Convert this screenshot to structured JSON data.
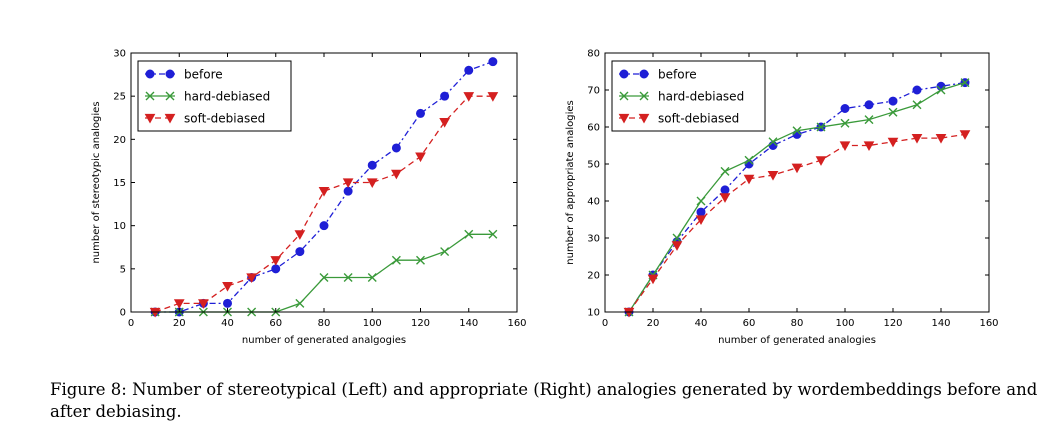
{
  "caption": "Figure 8: Number of stereotypical (Left) and appropriate (Right) analogies generated by wordembeddings before and after debiasing.",
  "colors": {
    "before": "#1f1fd6",
    "hard": "#3a9a3a",
    "soft": "#d42020"
  },
  "chart_data": [
    {
      "type": "line",
      "xlabel": "number of generated analgogies",
      "ylabel": "number of stereotypic analogies",
      "xlim": [
        0,
        160
      ],
      "ylim": [
        0,
        30
      ],
      "xticks": [
        0,
        20,
        40,
        60,
        80,
        100,
        120,
        140,
        160
      ],
      "yticks": [
        0,
        5,
        10,
        15,
        20,
        25,
        30
      ],
      "legend_position": "top-left",
      "grid": false,
      "series": [
        {
          "name": "before",
          "marker": "circle",
          "style": "dashdot",
          "x": [
            10,
            20,
            30,
            40,
            50,
            60,
            70,
            80,
            90,
            100,
            110,
            120,
            130,
            140,
            150
          ],
          "y": [
            0,
            0,
            1,
            1,
            4,
            5,
            7,
            10,
            14,
            17,
            19,
            23,
            25,
            28,
            29
          ]
        },
        {
          "name": "hard-debiased",
          "marker": "x",
          "style": "solid",
          "x": [
            10,
            20,
            30,
            40,
            50,
            60,
            70,
            80,
            90,
            100,
            110,
            120,
            130,
            140,
            150
          ],
          "y": [
            0,
            0,
            0,
            0,
            0,
            0,
            1,
            4,
            4,
            4,
            6,
            6,
            7,
            9,
            9
          ]
        },
        {
          "name": "soft-debiased",
          "marker": "triangle-down",
          "style": "dashed",
          "x": [
            10,
            20,
            30,
            40,
            50,
            60,
            70,
            80,
            90,
            100,
            110,
            120,
            130,
            140,
            150
          ],
          "y": [
            0,
            1,
            1,
            3,
            4,
            6,
            9,
            14,
            15,
            15,
            16,
            18,
            22,
            25,
            25
          ]
        }
      ]
    },
    {
      "type": "line",
      "xlabel": "number of generated analogies",
      "ylabel": "number of appropriate analogies",
      "xlim": [
        0,
        160
      ],
      "ylim": [
        10,
        80
      ],
      "xticks": [
        0,
        20,
        40,
        60,
        80,
        100,
        120,
        140,
        160
      ],
      "yticks": [
        10,
        20,
        30,
        40,
        50,
        60,
        70,
        80
      ],
      "legend_position": "top-left",
      "grid": false,
      "series": [
        {
          "name": "before",
          "marker": "circle",
          "style": "dashdot",
          "x": [
            10,
            20,
            30,
            40,
            50,
            60,
            70,
            80,
            90,
            100,
            110,
            120,
            130,
            140,
            150
          ],
          "y": [
            10,
            20,
            29,
            37,
            43,
            50,
            55,
            58,
            60,
            65,
            66,
            67,
            70,
            71,
            72
          ]
        },
        {
          "name": "hard-debiased",
          "marker": "x",
          "style": "solid",
          "x": [
            10,
            20,
            30,
            40,
            50,
            60,
            70,
            80,
            90,
            100,
            110,
            120,
            130,
            140,
            150
          ],
          "y": [
            10,
            20,
            30,
            40,
            48,
            51,
            56,
            59,
            60,
            61,
            62,
            64,
            66,
            70,
            72
          ]
        },
        {
          "name": "soft-debiased",
          "marker": "triangle-down",
          "style": "dashed",
          "x": [
            10,
            20,
            30,
            40,
            50,
            60,
            70,
            80,
            90,
            100,
            110,
            120,
            130,
            140,
            150
          ],
          "y": [
            10,
            19,
            28,
            35,
            41,
            46,
            47,
            49,
            51,
            55,
            55,
            56,
            57,
            57,
            58
          ]
        }
      ]
    }
  ]
}
